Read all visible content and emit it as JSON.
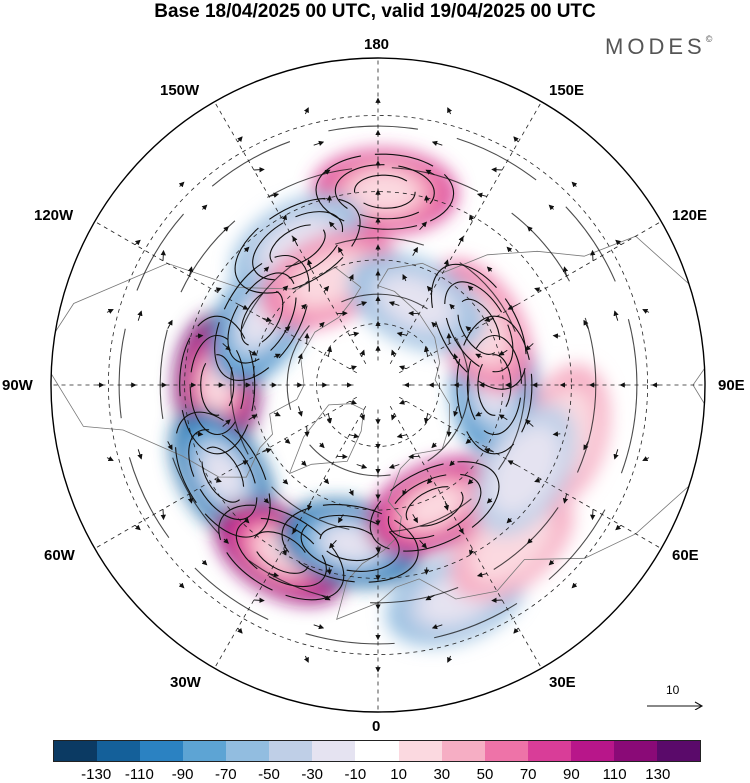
{
  "header": {
    "title": "Base 18/04/2025 00 UTC, valid 19/04/2025 00 UTC",
    "brand": "MODES",
    "brand_mark": "©"
  },
  "map": {
    "projection": "north-polar-stereographic",
    "longitude_labels": [
      {
        "name": "lon-label-180",
        "text": "180"
      },
      {
        "name": "lon-label-150e",
        "text": "150E"
      },
      {
        "name": "lon-label-120e",
        "text": "120E"
      },
      {
        "name": "lon-label-90e",
        "text": "90E"
      },
      {
        "name": "lon-label-60e",
        "text": "60E"
      },
      {
        "name": "lon-label-30e",
        "text": "30E"
      },
      {
        "name": "lon-label-0",
        "text": "0"
      },
      {
        "name": "lon-label-30w",
        "text": "30W"
      },
      {
        "name": "lon-label-60w",
        "text": "60W"
      },
      {
        "name": "lon-label-90w",
        "text": "90W"
      },
      {
        "name": "lon-label-120w",
        "text": "120W"
      },
      {
        "name": "lon-label-150w",
        "text": "150W"
      }
    ],
    "reference_vector": "10",
    "anomaly_cells": [
      {
        "lon": -90,
        "lat": 52,
        "value": 125
      },
      {
        "lon": -120,
        "lat": 58,
        "value": -95
      },
      {
        "lon": -60,
        "lat": 48,
        "value": -100
      },
      {
        "lon": -30,
        "lat": 45,
        "value": 100
      },
      {
        "lon": -10,
        "lat": 52,
        "value": -115
      },
      {
        "lon": 25,
        "lat": 58,
        "value": 80
      },
      {
        "lon": 90,
        "lat": 62,
        "value": -85
      },
      {
        "lon": 120,
        "lat": 62,
        "value": 45
      },
      {
        "lon": 178,
        "lat": 45,
        "value": 70
      },
      {
        "lon": -150,
        "lat": 52,
        "value": -50
      },
      {
        "lon": -155,
        "lat": 62,
        "value": 40
      },
      {
        "lon": 155,
        "lat": 68,
        "value": -40
      },
      {
        "lon": 20,
        "lat": 38,
        "value": -45
      },
      {
        "lon": 40,
        "lat": 42,
        "value": 30
      },
      {
        "lon": 75,
        "lat": 45,
        "value": 25
      },
      {
        "lon": 60,
        "lat": 50,
        "value": -25
      }
    ]
  },
  "colorbar": {
    "colors": [
      "#0b3a63",
      "#14609a",
      "#2b82c2",
      "#5da4d4",
      "#92bde0",
      "#bfcfe7",
      "#e5e3f1",
      "#ffffff",
      "#fbd9e0",
      "#f6aec4",
      "#ee73a8",
      "#d93d98",
      "#b8168a",
      "#8a0a77",
      "#5a0a6a"
    ],
    "tick_labels": [
      "-130",
      "-110",
      "-90",
      "-70",
      "-50",
      "-30",
      "-10",
      "10",
      "30",
      "50",
      "70",
      "90",
      "110",
      "130"
    ]
  }
}
